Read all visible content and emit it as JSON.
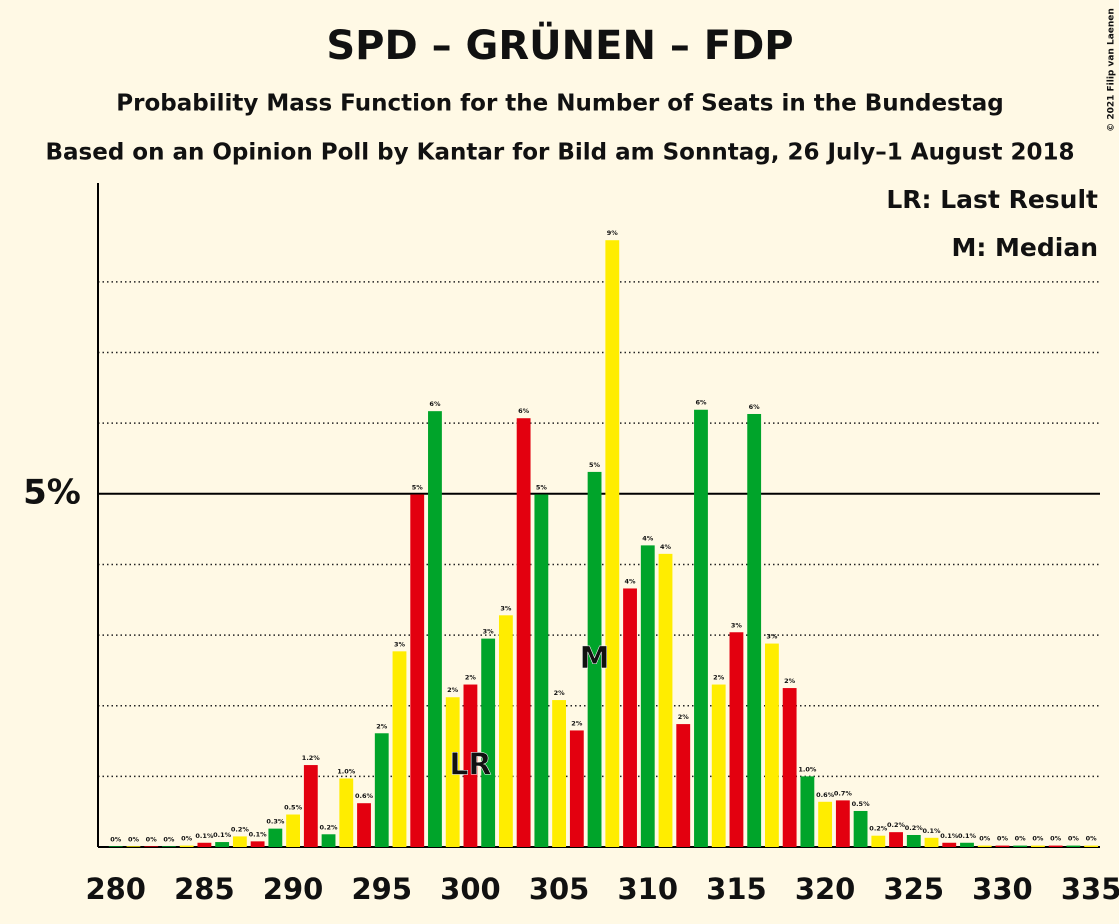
{
  "chart_data": {
    "type": "bar",
    "title": "SPD – GRÜNEN – FDP",
    "subtitle": "Probability Mass Function for the Number of Seats in the Bundestag",
    "subtitle2": "Based on an Opinion Poll by Kantar for Bild am Sonntag, 26 July–1 August 2018",
    "legend": [
      "LR: Last Result",
      "M: Median"
    ],
    "credit": "© 2021 Filip van Laenen",
    "x": [
      280,
      281,
      282,
      283,
      284,
      285,
      286,
      287,
      288,
      289,
      290,
      291,
      292,
      293,
      294,
      295,
      296,
      297,
      298,
      299,
      300,
      301,
      302,
      303,
      304,
      305,
      306,
      307,
      308,
      309,
      310,
      311,
      312,
      313,
      314,
      315,
      316,
      317,
      318,
      319,
      320,
      321,
      322,
      323,
      324,
      325,
      326,
      327,
      328,
      329,
      330,
      331,
      332,
      333,
      334,
      335
    ],
    "values": [
      0.01,
      0.01,
      0.01,
      0.01,
      0.02,
      0.06,
      0.07,
      0.15,
      0.08,
      0.26,
      0.46,
      1.16,
      0.18,
      0.97,
      0.62,
      1.61,
      2.77,
      4.99,
      6.17,
      2.12,
      2.3,
      2.95,
      3.28,
      6.07,
      4.99,
      2.08,
      1.65,
      5.31,
      8.59,
      3.66,
      4.27,
      4.15,
      1.74,
      6.19,
      2.3,
      3.04,
      6.13,
      2.88,
      2.25,
      1.0,
      0.64,
      0.66,
      0.51,
      0.16,
      0.21,
      0.17,
      0.13,
      0.06,
      0.06,
      0.02,
      0.02,
      0.02,
      0.02,
      0.02,
      0.02,
      0.02
    ],
    "value_labels": [
      "0%",
      "0%",
      "0%",
      "0%",
      "0%",
      "0.1%",
      "0.1%",
      "0.2%",
      "0.1%",
      "0.3%",
      "0.5%",
      "1.2%",
      "0.2%",
      "1.0%",
      "0.6%",
      "2%",
      "3%",
      "5%",
      "6%",
      "2%",
      "2%",
      "3%",
      "3%",
      "6%",
      "5%",
      "2%",
      "2%",
      "5%",
      "9%",
      "4%",
      "4%",
      "4%",
      "2%",
      "6%",
      "2%",
      "3%",
      "6%",
      "3%",
      "2%",
      "1.0%",
      "0.6%",
      "0.7%",
      "0.5%",
      "0.2%",
      "0.2%",
      "0.2%",
      "0.1%",
      "0.1%",
      "0.1%",
      "0%",
      "0%",
      "0%",
      "0%",
      "0%",
      "0%",
      "0%"
    ],
    "palette": [
      "#00a42a",
      "#ffed00",
      "#e3000f"
    ],
    "markers": [
      {
        "label": "LR",
        "x": 300
      },
      {
        "label": "M",
        "x": 307
      }
    ],
    "xlim": [
      279,
      335.5
    ],
    "xticks": [
      280,
      285,
      290,
      295,
      300,
      305,
      310,
      315,
      320,
      325,
      330,
      335
    ],
    "ylim": [
      0,
      9.4
    ],
    "yticks": [
      {
        "value": 5,
        "label": "5%"
      }
    ],
    "grid_lines": [
      1,
      2,
      3,
      4,
      6,
      7,
      8
    ]
  }
}
